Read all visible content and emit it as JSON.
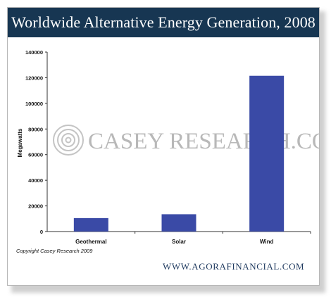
{
  "header": {
    "title": "Worldwide Alternative Energy Generation, 2008"
  },
  "watermark": {
    "text": "CASEY RESEARCH.COM",
    "color": "#b8b8b8"
  },
  "copyright": "Copyright Casey Research 2009",
  "footer": {
    "site": "WWW.AGORAFINANCIAL.COM"
  },
  "colors": {
    "bar": "#3a4aa6",
    "header_bg": "#173652"
  },
  "chart_data": {
    "type": "bar",
    "title": "Worldwide Alternative Energy Generation, 2008",
    "xlabel": "",
    "ylabel": "Megawatts",
    "categories": [
      "Geothermal",
      "Solar",
      "Wind"
    ],
    "values": [
      10500,
      13500,
      121500
    ],
    "ylim": [
      0,
      140000
    ],
    "yticks": [
      "0",
      "20000",
      "40000",
      "60000",
      "80000",
      "100000",
      "120000",
      "140000"
    ],
    "grid": false,
    "legend": "none"
  }
}
